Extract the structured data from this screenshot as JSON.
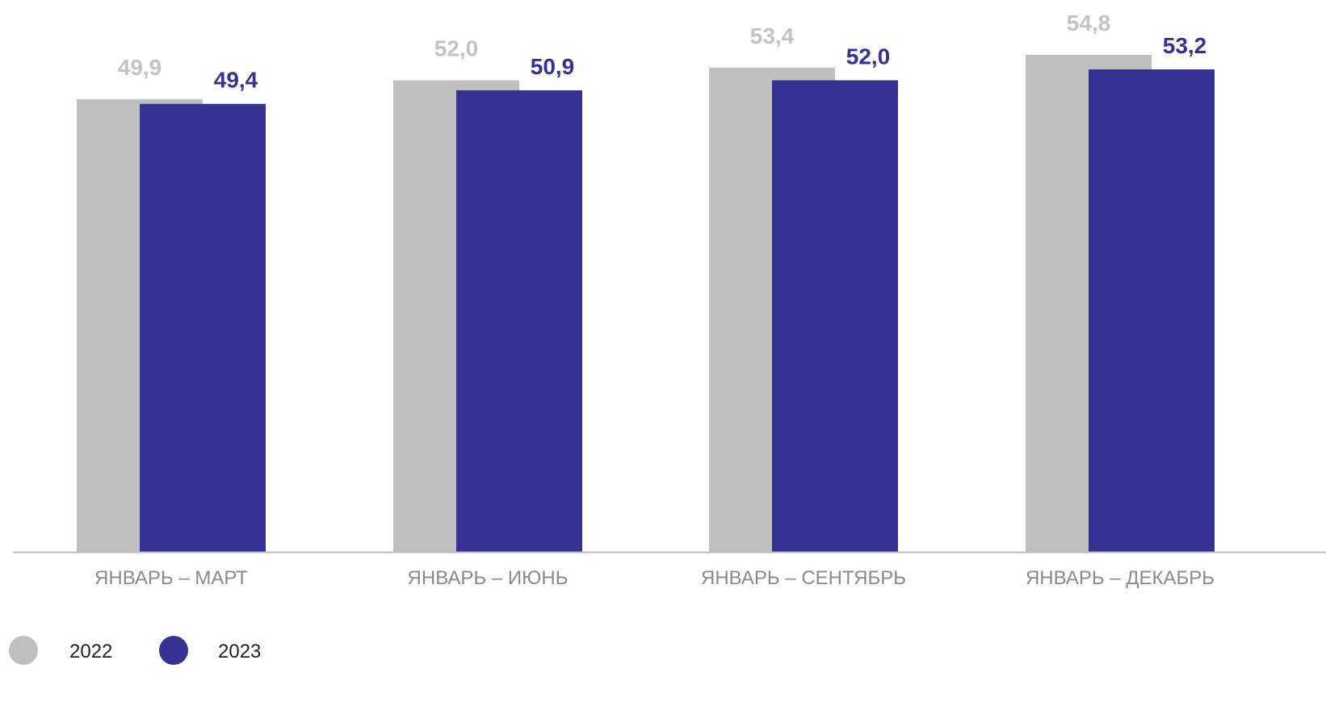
{
  "chart_data": {
    "type": "bar",
    "categories": [
      "ЯНВАРЬ – МАРТ",
      "ЯНВАРЬ – ИЮНЬ",
      "ЯНВАРЬ – СЕНТЯБРЬ",
      "ЯНВАРЬ – ДЕКАБРЬ"
    ],
    "series": [
      {
        "name": "2022",
        "values": [
          49.9,
          52.0,
          53.4,
          54.8
        ],
        "labels": [
          "49,9",
          "52,0",
          "53,4",
          "54,8"
        ],
        "color": "#bfbfbf"
      },
      {
        "name": "2023",
        "values": [
          49.4,
          50.9,
          52.0,
          53.2
        ],
        "labels": [
          "49,4",
          "50,9",
          "52,0",
          "53,2"
        ],
        "color": "#353293"
      }
    ],
    "title": "",
    "xlabel": "",
    "ylabel": "",
    "ylim": [
      0,
      55
    ],
    "grid": false,
    "legend_position": "bottom-left",
    "axis_color": "#bfbfbf"
  }
}
